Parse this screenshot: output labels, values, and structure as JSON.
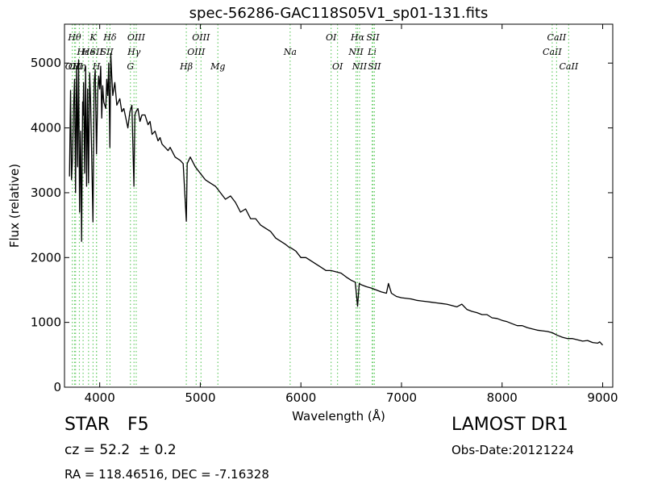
{
  "chart_data": {
    "type": "line",
    "title": "spec-56286-GAC118S05V1_sp01-131.fits",
    "xlabel": "Wavelength (Å)",
    "ylabel": "Flux (relative)",
    "xlim": [
      3650,
      9100
    ],
    "ylim": [
      0,
      5600
    ],
    "xticks": [
      4000,
      5000,
      6000,
      7000,
      8000,
      9000
    ],
    "yticks": [
      0,
      1000,
      2000,
      3000,
      4000,
      5000
    ],
    "grid": false,
    "series": [
      {
        "color": "#000000",
        "x": [
          3700,
          3710,
          3720,
          3730,
          3740,
          3750,
          3760,
          3770,
          3780,
          3790,
          3800,
          3810,
          3820,
          3830,
          3835,
          3840,
          3850,
          3860,
          3870,
          3880,
          3889,
          3900,
          3910,
          3920,
          3933,
          3945,
          3955,
          3968,
          3980,
          3990,
          4000,
          4010,
          4020,
          4030,
          4040,
          4060,
          4070,
          4080,
          4090,
          4101,
          4110,
          4120,
          4130,
          4150,
          4170,
          4200,
          4220,
          4240,
          4260,
          4280,
          4300,
          4320,
          4340,
          4350,
          4360,
          4380,
          4400,
          4420,
          4450,
          4480,
          4500,
          4520,
          4550,
          4580,
          4600,
          4620,
          4650,
          4680,
          4700,
          4750,
          4800,
          4830,
          4861,
          4870,
          4900,
          4950,
          5000,
          5050,
          5100,
          5150,
          5200,
          5250,
          5300,
          5350,
          5400,
          5450,
          5500,
          5550,
          5600,
          5650,
          5700,
          5750,
          5800,
          5850,
          5890,
          5900,
          5950,
          6000,
          6050,
          6100,
          6150,
          6200,
          6250,
          6300,
          6350,
          6400,
          6450,
          6500,
          6540,
          6563,
          6580,
          6600,
          6650,
          6700,
          6750,
          6800,
          6850,
          6870,
          6900,
          6950,
          7000,
          7050,
          7100,
          7150,
          7200,
          7250,
          7300,
          7350,
          7400,
          7450,
          7500,
          7550,
          7600,
          7650,
          7700,
          7750,
          7800,
          7850,
          7900,
          7950,
          8000,
          8050,
          8100,
          8150,
          8200,
          8250,
          8300,
          8350,
          8400,
          8450,
          8500,
          8550,
          8600,
          8650,
          8700,
          8750,
          8800,
          8850,
          8900,
          8950,
          8970,
          9000
        ],
        "y": [
          3250,
          4580,
          3200,
          3550,
          4300,
          4750,
          3000,
          4950,
          3400,
          5050,
          2700,
          3950,
          2250,
          4400,
          4200,
          4700,
          3300,
          4950,
          3100,
          4600,
          3150,
          4850,
          4400,
          3600,
          2550,
          4700,
          4900,
          3600,
          4550,
          4800,
          4600,
          4950,
          4150,
          4650,
          4400,
          4300,
          4750,
          4500,
          5000,
          3700,
          5150,
          4800,
          4500,
          4700,
          4350,
          4450,
          4250,
          4300,
          4150,
          4000,
          4250,
          4350,
          3100,
          4200,
          4250,
          4300,
          4100,
          4200,
          4200,
          4050,
          4100,
          3900,
          3950,
          3800,
          3850,
          3750,
          3700,
          3650,
          3700,
          3550,
          3500,
          3450,
          2560,
          3450,
          3550,
          3400,
          3300,
          3200,
          3150,
          3100,
          3000,
          2900,
          2950,
          2850,
          2700,
          2750,
          2600,
          2600,
          2500,
          2450,
          2400,
          2300,
          2250,
          2200,
          2150,
          2150,
          2100,
          2000,
          2000,
          1950,
          1900,
          1850,
          1800,
          1800,
          1780,
          1760,
          1700,
          1650,
          1620,
          1250,
          1600,
          1580,
          1550,
          1530,
          1500,
          1470,
          1450,
          1600,
          1450,
          1400,
          1380,
          1370,
          1360,
          1340,
          1330,
          1320,
          1310,
          1300,
          1290,
          1280,
          1260,
          1240,
          1280,
          1200,
          1170,
          1150,
          1120,
          1120,
          1070,
          1060,
          1030,
          1010,
          980,
          950,
          950,
          920,
          900,
          880,
          870,
          860,
          840,
          800,
          770,
          750,
          750,
          730,
          710,
          720,
          690,
          680,
          700,
          650
        ]
      }
    ],
    "lines": [
      {
        "x": 3727,
        "label": "OII",
        "row": 2
      },
      {
        "x": 3750,
        "label": "Hθ",
        "row": 0
      },
      {
        "x": 3760,
        "label": "OII",
        "row": 2
      },
      {
        "x": 3798,
        "label": "Hη",
        "row": 2
      },
      {
        "x": 3835,
        "label": "Hε",
        "row": 1
      },
      {
        "x": 3889,
        "label": "He",
        "row": 1
      },
      {
        "x": 3934,
        "label": "K",
        "row": 0
      },
      {
        "x": 3968,
        "label": "H",
        "row": 2
      },
      {
        "x": 3968,
        "label": "SII",
        "row": 1
      },
      {
        "x": 4072,
        "label": "SII",
        "row": 1
      },
      {
        "x": 4102,
        "label": "Hδ",
        "row": 0
      },
      {
        "x": 4305,
        "label": "G",
        "row": 2
      },
      {
        "x": 4341,
        "label": "Hγ",
        "row": 1
      },
      {
        "x": 4363,
        "label": "OIII",
        "row": 0
      },
      {
        "x": 4861,
        "label": "Hβ",
        "row": 2
      },
      {
        "x": 4959,
        "label": "OIII",
        "row": 1
      },
      {
        "x": 5007,
        "label": "OIII",
        "row": 0
      },
      {
        "x": 5175,
        "label": "Mg",
        "row": 2
      },
      {
        "x": 5893,
        "label": "Na",
        "row": 1
      },
      {
        "x": 6300,
        "label": "OI",
        "row": 0
      },
      {
        "x": 6364,
        "label": "OI",
        "row": 2
      },
      {
        "x": 6548,
        "label": "NII",
        "row": 1
      },
      {
        "x": 6563,
        "label": "Hα",
        "row": 0
      },
      {
        "x": 6583,
        "label": "NII",
        "row": 2
      },
      {
        "x": 6708,
        "label": "Li",
        "row": 1
      },
      {
        "x": 6716,
        "label": "SII",
        "row": 0
      },
      {
        "x": 6731,
        "label": "SII",
        "row": 2
      },
      {
        "x": 8498,
        "label": "CaII",
        "row": 1
      },
      {
        "x": 8542,
        "label": "CaII",
        "row": 0
      },
      {
        "x": 8662,
        "label": "CaII",
        "row": 2
      }
    ],
    "line_color": "#66cc66"
  },
  "info": {
    "class_label": "STAR",
    "subclass": "F5",
    "survey": "LAMOST DR1",
    "cz": "cz = 52.2  ± 0.2",
    "obs_date": "Obs-Date:20121224",
    "coords": "RA = 118.46516, DEC = -7.16328"
  }
}
